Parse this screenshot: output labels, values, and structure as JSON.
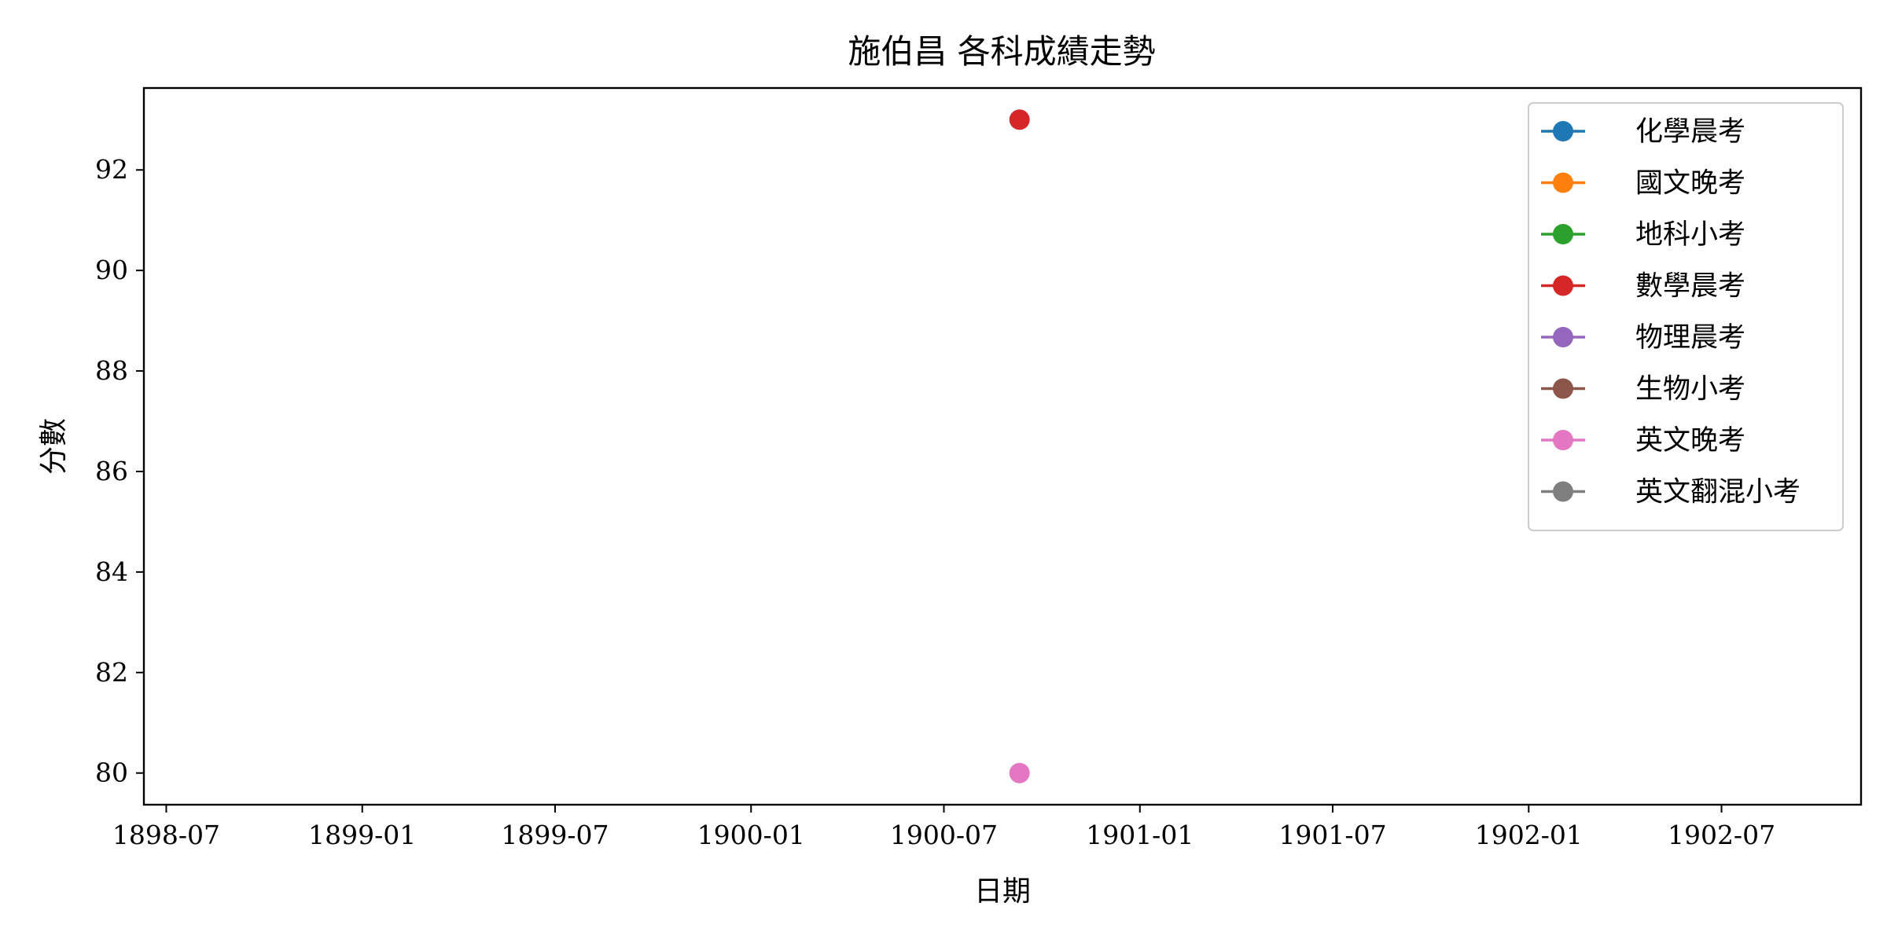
{
  "chart_data": {
    "type": "line",
    "title": "施伯昌 各科成績走勢",
    "xlabel": "日期",
    "ylabel": "分數",
    "x_axis_type": "date",
    "xlim": [
      "1898-06-10",
      "1902-11-09"
    ],
    "ylim": [
      79.37,
      93.63
    ],
    "x_ticks": [
      "1898-07",
      "1899-01",
      "1899-07",
      "1900-01",
      "1900-07",
      "1901-01",
      "1901-07",
      "1902-01",
      "1902-07"
    ],
    "y_ticks": [
      80,
      82,
      84,
      86,
      88,
      90,
      92
    ],
    "grid": false,
    "legend_position": "top-right",
    "series": [
      {
        "name": "化學晨考",
        "color": "#1f77b4",
        "points": []
      },
      {
        "name": "國文晚考",
        "color": "#ff7f0e",
        "points": []
      },
      {
        "name": "地科小考",
        "color": "#2ca02c",
        "points": []
      },
      {
        "name": "數學晨考",
        "color": "#d62728",
        "points": [
          {
            "x": "1900-09-10",
            "y": 93
          }
        ]
      },
      {
        "name": "物理晨考",
        "color": "#9467bd",
        "points": []
      },
      {
        "name": "生物小考",
        "color": "#8c564b",
        "points": []
      },
      {
        "name": "英文晚考",
        "color": "#e377c2",
        "points": [
          {
            "x": "1900-09-10",
            "y": 80
          }
        ]
      },
      {
        "name": "英文翻混小考",
        "color": "#7f7f7f",
        "points": []
      }
    ]
  }
}
